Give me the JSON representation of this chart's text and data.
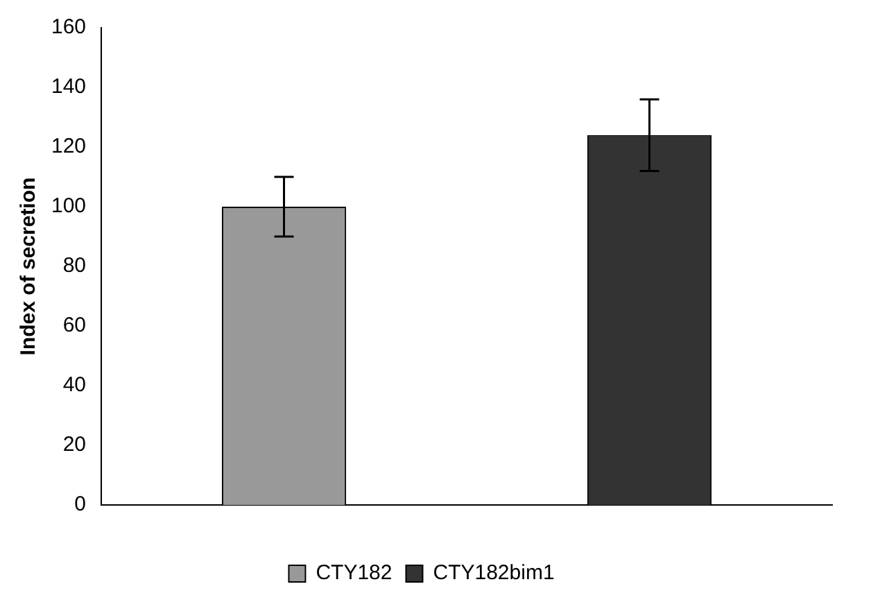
{
  "chart_data": {
    "type": "bar",
    "ylabel": "Index of secretion",
    "categories": [
      null
    ],
    "series": [
      {
        "name": "CTY182",
        "color": "#999999",
        "values": [
          100
        ],
        "errors": [
          10
        ]
      },
      {
        "name": "CTY182bim1",
        "color": "#333333",
        "values": [
          124
        ],
        "errors": [
          12
        ]
      }
    ],
    "ylim": [
      0,
      160
    ],
    "yticks": [
      0,
      20,
      40,
      60,
      80,
      100,
      120,
      140,
      160
    ],
    "grid": false,
    "legend": "bottom"
  }
}
